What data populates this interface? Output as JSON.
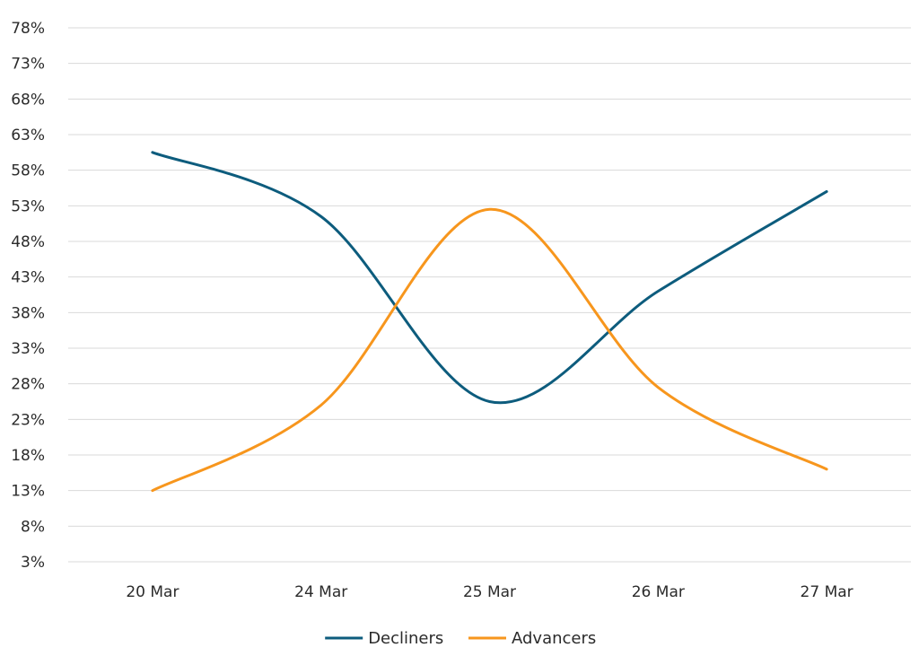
{
  "chart_data": {
    "type": "line",
    "title": "",
    "xlabel": "",
    "ylabel": "",
    "categories": [
      "20 Mar",
      "24 Mar",
      "25 Mar",
      "26 Mar",
      "27 Mar"
    ],
    "y_ticks": [
      "3%",
      "8%",
      "13%",
      "18%",
      "23%",
      "28%",
      "33%",
      "38%",
      "43%",
      "48%",
      "53%",
      "58%",
      "63%",
      "68%",
      "73%",
      "78%"
    ],
    "ylim": [
      3,
      78
    ],
    "y_unit": "%",
    "grid": true,
    "legend_position": "bottom",
    "series": [
      {
        "name": "Decliners",
        "color": "#0d5c7d",
        "values": [
          60.5,
          51.5,
          25.5,
          41,
          55
        ]
      },
      {
        "name": "Advancers",
        "color": "#f7961d",
        "values": [
          13,
          25,
          52.5,
          27.5,
          16
        ]
      }
    ]
  }
}
